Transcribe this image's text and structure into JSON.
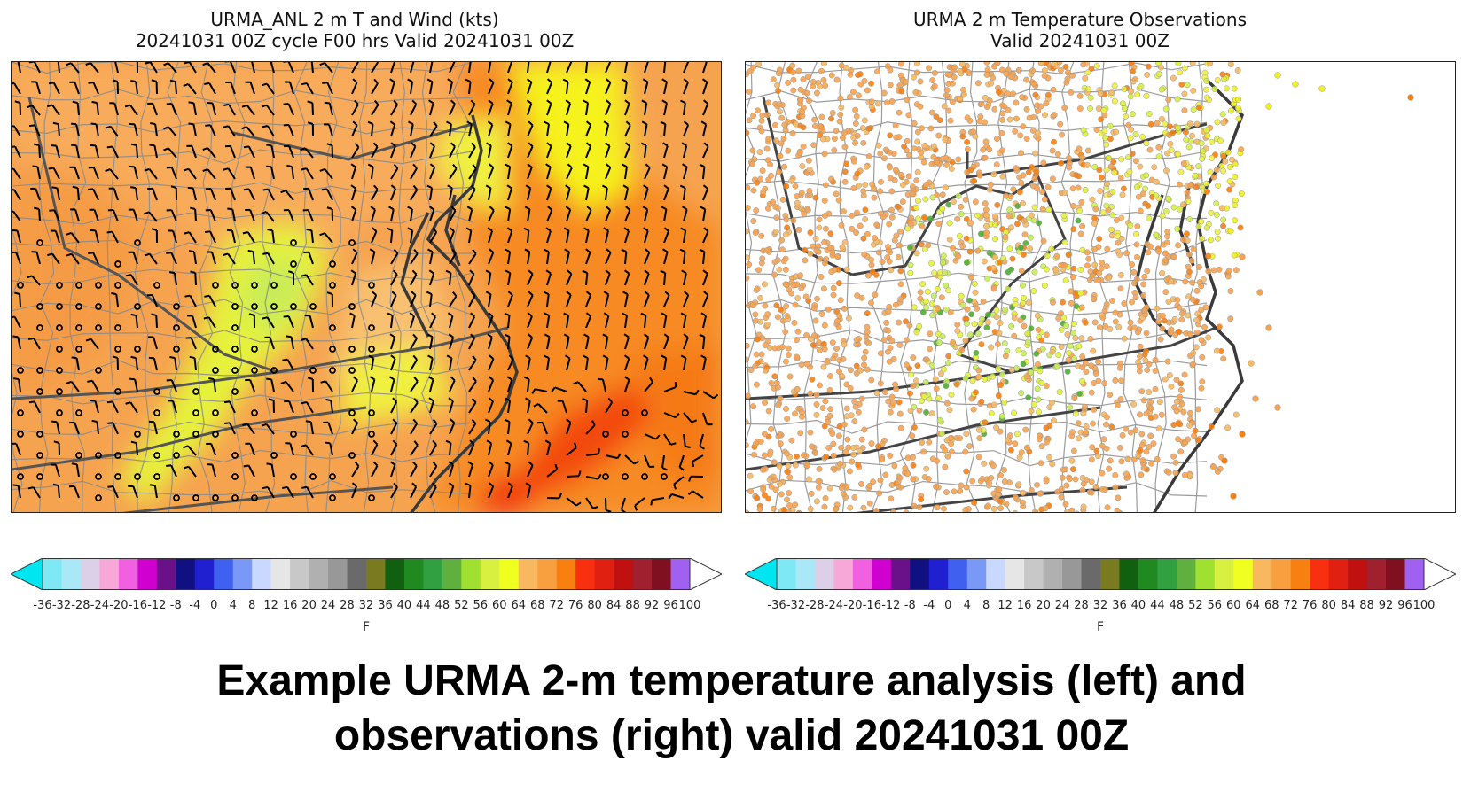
{
  "panels": {
    "left": {
      "title_line1": "URMA_ANL 2 m T and Wind (kts)",
      "title_line2": "20241031 00Z cycle F00 hrs Valid 20241031 00Z"
    },
    "right": {
      "title_line1": "URMA 2 m Temperature Observations",
      "title_line2": "Valid 20241031 00Z"
    }
  },
  "colorbar": {
    "unit": "F",
    "tick_labels": [
      "-36",
      "-32",
      "-28",
      "-24",
      "-20",
      "-16",
      "-12",
      "-8",
      "-4",
      "0",
      "4",
      "8",
      "12",
      "16",
      "20",
      "24",
      "28",
      "32",
      "36",
      "40",
      "44",
      "48",
      "52",
      "56",
      "60",
      "64",
      "68",
      "72",
      "76",
      "80",
      "84",
      "88",
      "92",
      "96",
      "100"
    ],
    "under_color": "#00e5f0",
    "over_color": "#ffffff",
    "colors": [
      "#7fe8f5",
      "#aae8f8",
      "#dcd0e8",
      "#f7a8d8",
      "#f060e0",
      "#d000d0",
      "#6a1088",
      "#101080",
      "#2020d0",
      "#4060f0",
      "#7a98f5",
      "#c8d8ff",
      "#e6e6e6",
      "#c8c8c8",
      "#b0b0b0",
      "#989898",
      "#6a6a6a",
      "#7a7a20",
      "#106010",
      "#208a20",
      "#30a040",
      "#60b040",
      "#a0e030",
      "#d8f040",
      "#f0ff20",
      "#f8b860",
      "#f8a040",
      "#f88010",
      "#f83010",
      "#e02010",
      "#c01010",
      "#a02030",
      "#801020",
      "#a060f0"
    ]
  },
  "caption": {
    "line1": "Example URMA 2-m temperature analysis (left) and",
    "line2": "observations (right) valid 20241031 00Z"
  }
}
